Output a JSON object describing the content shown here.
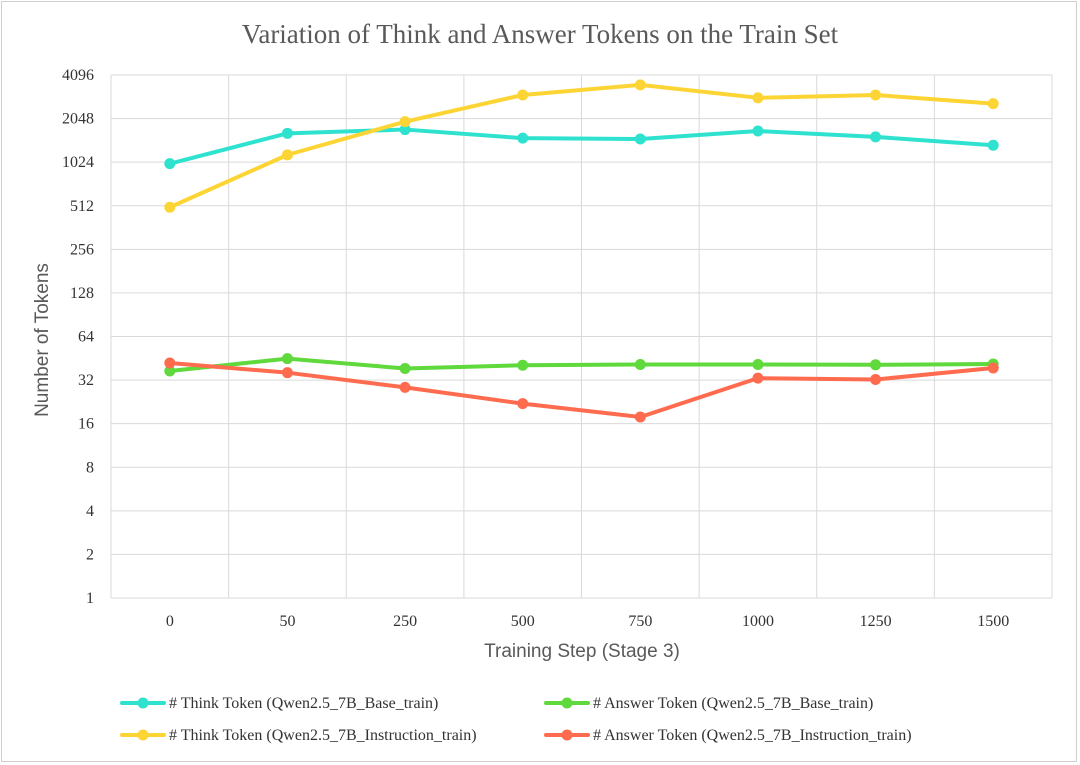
{
  "chart_data": {
    "type": "line",
    "title": "Variation of Think and Answer Tokens on the Train Set",
    "xlabel": "Training Step (Stage 3)",
    "ylabel": "Number of Tokens",
    "categories": [
      "0",
      "50",
      "250",
      "500",
      "750",
      "1000",
      "1250",
      "1500"
    ],
    "y_scale": "log2",
    "ylim": [
      1,
      4096
    ],
    "y_ticks": [
      "1",
      "2",
      "4",
      "8",
      "16",
      "32",
      "64",
      "128",
      "256",
      "512",
      "1024",
      "2048",
      "4096"
    ],
    "grid": true,
    "legend_position": "bottom",
    "series": [
      {
        "name": "# Think Token (Qwen2.5_7B_Base_train)",
        "color": "#2ee2cf",
        "values": [
          1000,
          1620,
          1720,
          1500,
          1480,
          1680,
          1530,
          1340
        ]
      },
      {
        "name": "# Answer Token (Qwen2.5_7B_Base_train)",
        "color": "#5fd93c",
        "values": [
          37,
          45,
          38.5,
          40.5,
          41,
          41,
          40.8,
          41.3
        ]
      },
      {
        "name": "# Think Token (Qwen2.5_7B_Instruction_train)",
        "color": "#fcd535",
        "values": [
          500,
          1150,
          1950,
          2980,
          3500,
          2850,
          2980,
          2600
        ]
      },
      {
        "name": "# Answer Token (Qwen2.5_7B_Instruction_train)",
        "color": "#ff6b4f",
        "values": [
          42,
          36,
          28.5,
          22,
          17.8,
          33,
          32.3,
          38.8
        ]
      }
    ]
  }
}
